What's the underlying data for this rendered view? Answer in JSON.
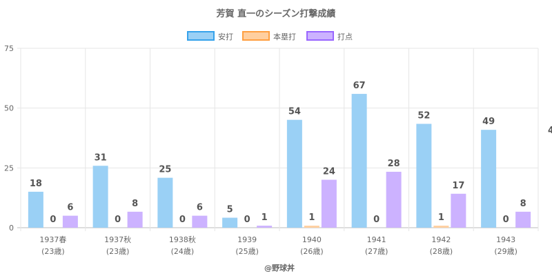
{
  "chart_data": {
    "type": "bar",
    "title": "芳賀 直一のシーズン打撃成績",
    "categories": [
      [
        "1937春",
        "(23歳)"
      ],
      [
        "1937秋",
        "(23歳)"
      ],
      [
        "1938秋",
        "(24歳)"
      ],
      [
        "1939",
        "(25歳)"
      ],
      [
        "1940",
        "(26歳)"
      ],
      [
        "1941",
        "(27歳)"
      ],
      [
        "1942",
        "(28歳)"
      ],
      [
        "1943",
        "(29歳)"
      ]
    ],
    "series": [
      {
        "name": "安打",
        "values": [
          18,
          31,
          25,
          5,
          54,
          67,
          52,
          49
        ],
        "fill": "#9ad0f5",
        "stroke": "#36a2eb"
      },
      {
        "name": "本塁打",
        "values": [
          0,
          0,
          0,
          0,
          1,
          0,
          1,
          0
        ],
        "fill": "#ffcf9f",
        "stroke": "#ff9f40"
      },
      {
        "name": "打点",
        "values": [
          6,
          8,
          6,
          1,
          24,
          28,
          17,
          8
        ],
        "fill": "#ccb2ff",
        "stroke": "#9966ff"
      }
    ],
    "ylim": [
      0,
      75
    ],
    "yticks": [
      0,
      25,
      50,
      75
    ],
    "grid": true,
    "legend": "top",
    "animation_progress": 0.835,
    "stray_label": "4",
    "xlabel": "@野球丼"
  }
}
